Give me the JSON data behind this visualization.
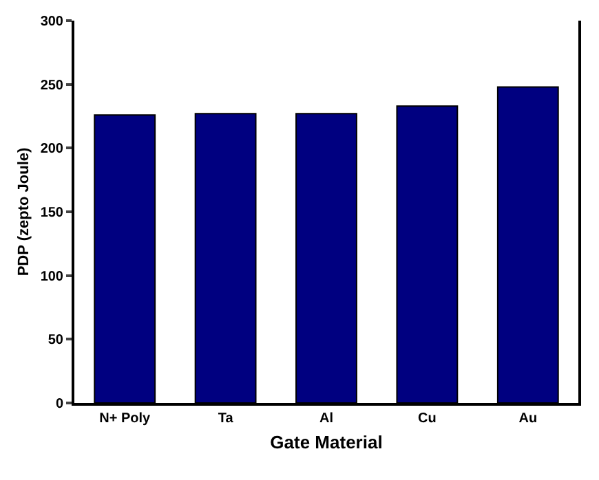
{
  "chart_data": {
    "type": "bar",
    "xlabel": "Gate Material",
    "ylabel": "PDP (zepto Joule)",
    "categories": [
      "N+ Poly",
      "Ta",
      "Al",
      "Cu",
      "Au"
    ],
    "values": [
      226,
      227,
      227,
      233,
      248
    ],
    "color": "#000080",
    "ylim": [
      0,
      300
    ],
    "yticks": [
      0,
      50,
      100,
      150,
      200,
      250,
      300
    ],
    "grid": false
  }
}
